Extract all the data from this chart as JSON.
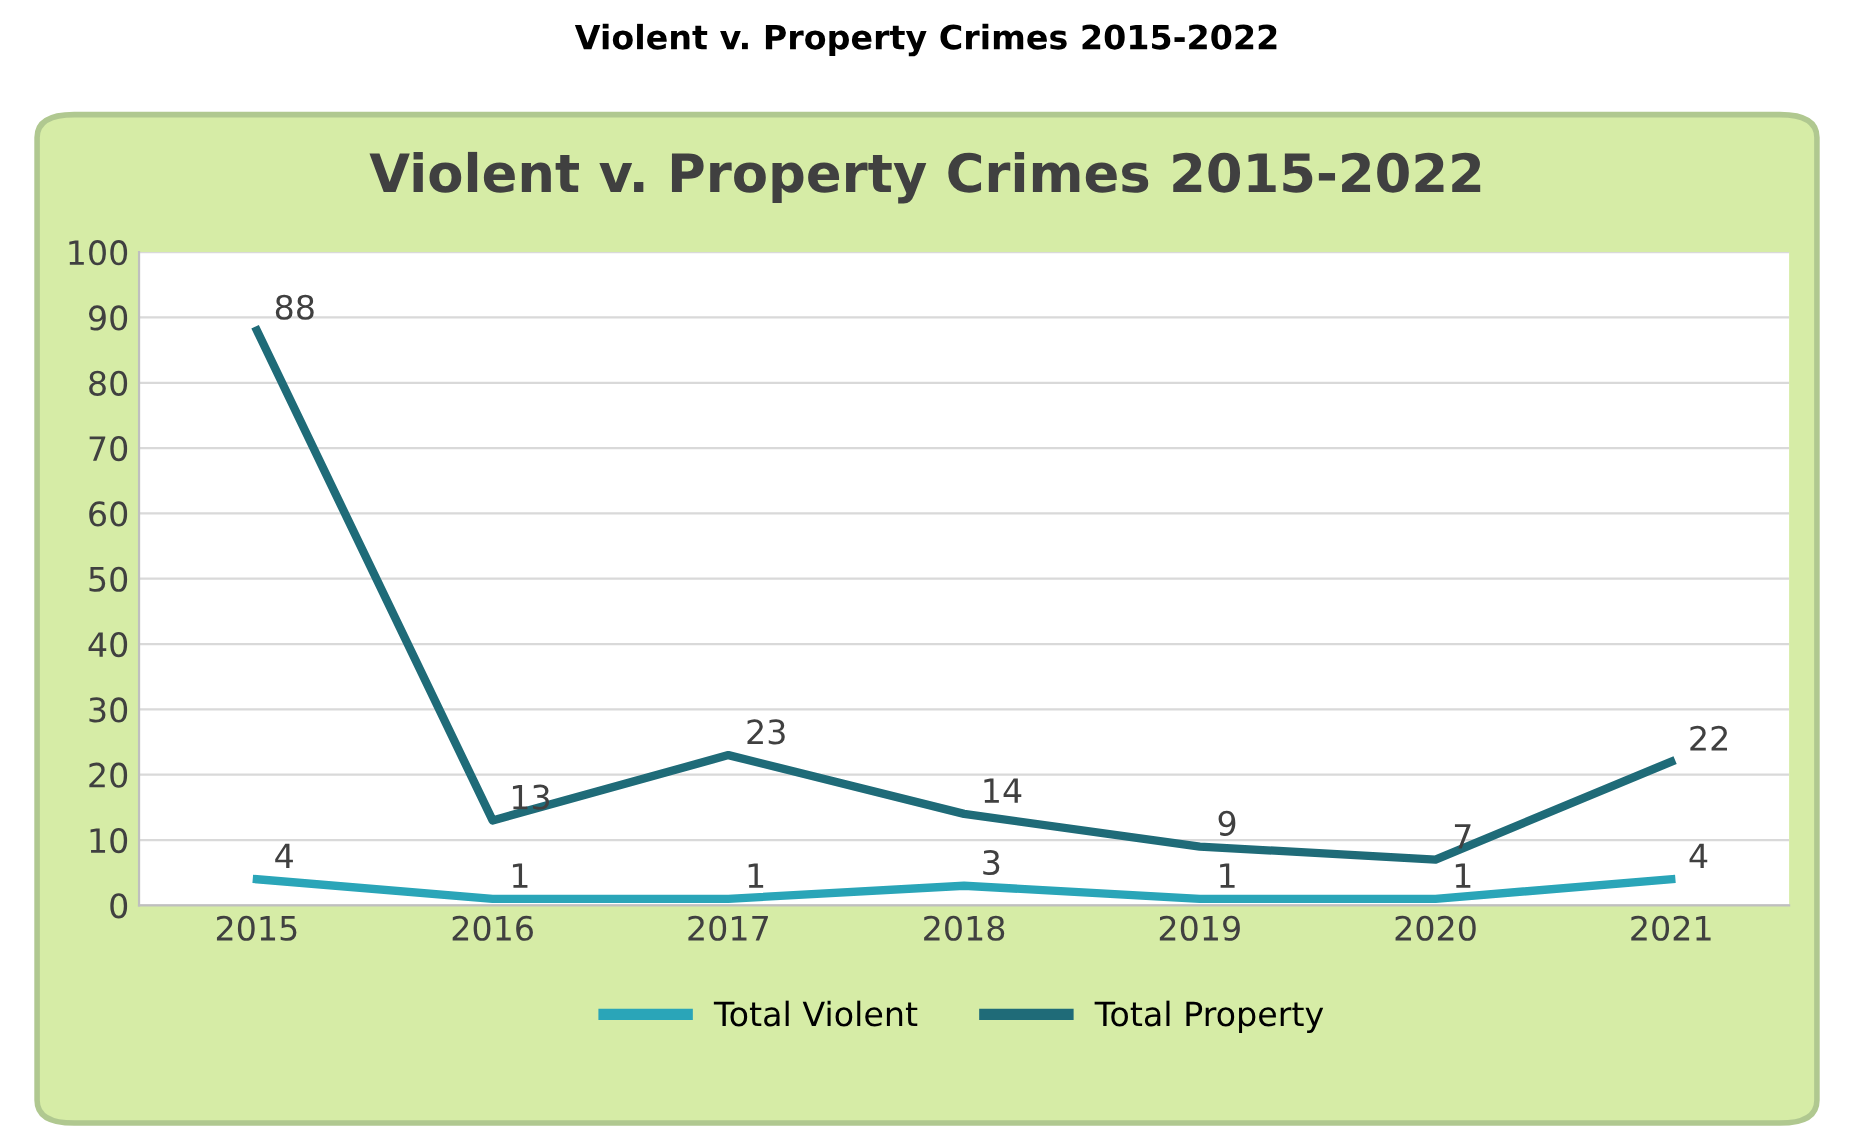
{
  "chart_data": {
    "type": "line",
    "title": "Violent v. Property Crimes 2015-2022",
    "annotations": [
      "Violent v. Property Crimes 2015-2022"
    ],
    "categories": [
      "2015",
      "2016",
      "2017",
      "2018",
      "2019",
      "2020",
      "2021"
    ],
    "series": [
      {
        "name": "Total Violent",
        "color": "#2aa5b8",
        "values": [
          4,
          1,
          1,
          3,
          1,
          1,
          4
        ]
      },
      {
        "name": "Total Property",
        "color": "#1f6b78",
        "values": [
          88,
          13,
          23,
          14,
          9,
          7,
          22
        ]
      }
    ],
    "ylim": [
      0,
      100
    ],
    "yticks": [
      0,
      10,
      20,
      30,
      40,
      50,
      60,
      70,
      80,
      90,
      100
    ],
    "grid": "y",
    "legend": "bottom",
    "data_labels": true,
    "marker": "none",
    "line_style": "solid"
  }
}
